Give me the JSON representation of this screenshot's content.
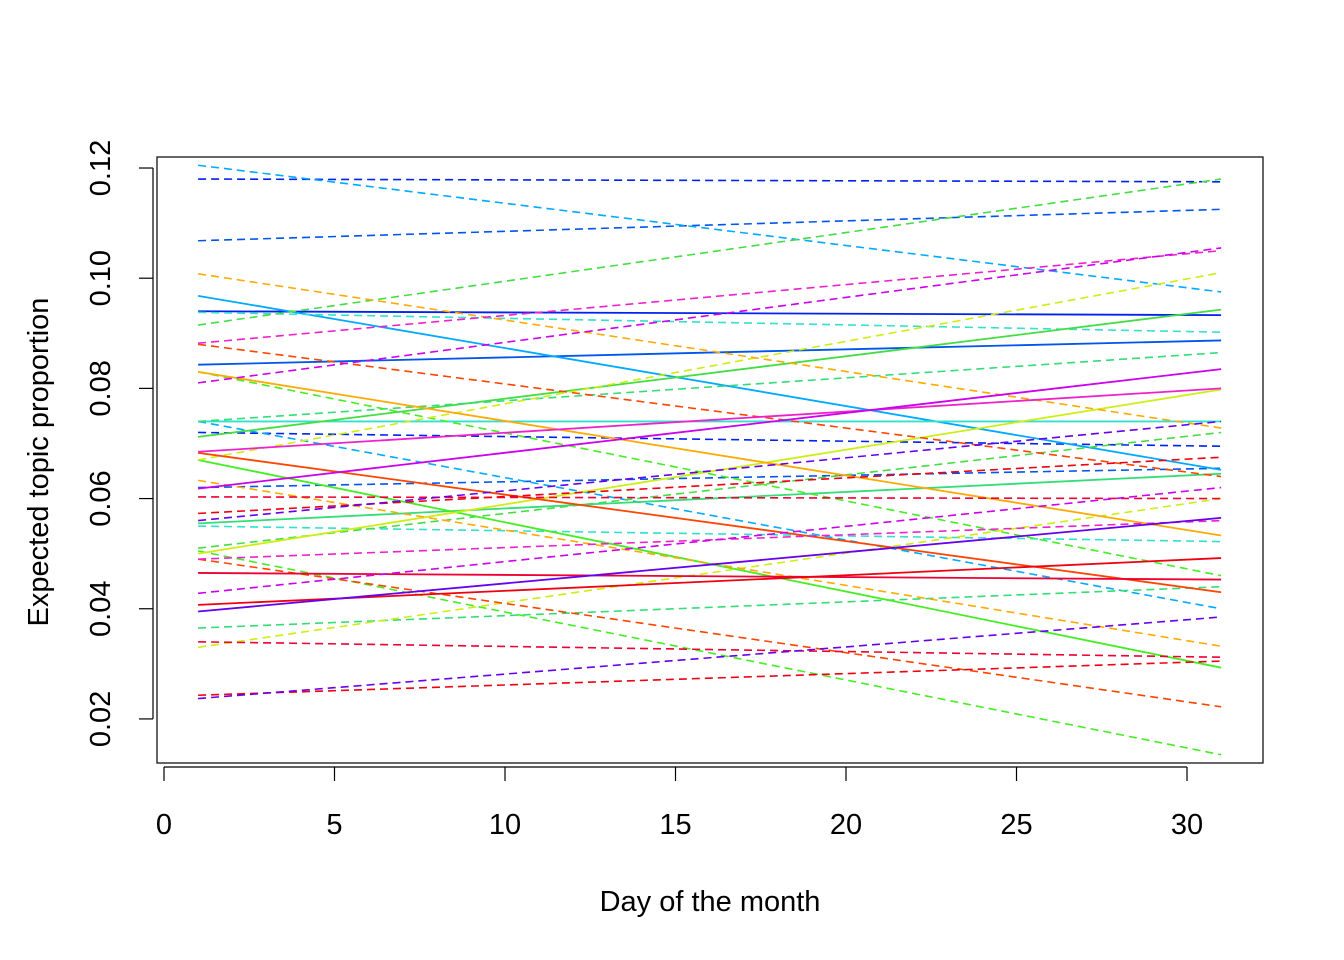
{
  "chart_data": {
    "type": "line",
    "title": "",
    "xlabel": "Day of the month",
    "ylabel": "Expected topic proportion",
    "xlim": [
      0,
      31
    ],
    "ylim": [
      0.012,
      0.122
    ],
    "x_ticks": [
      0,
      5,
      10,
      15,
      20,
      25,
      30
    ],
    "y_ticks": [
      0.02,
      0.04,
      0.06,
      0.08,
      0.1,
      0.12
    ],
    "x_tick_labels": [
      "0",
      "5",
      "10",
      "15",
      "20",
      "25",
      "30"
    ],
    "y_tick_labels": [
      "0.02",
      "0.04",
      "0.06",
      "0.08",
      "0.10",
      "0.12"
    ],
    "grid": false,
    "legend": "none",
    "x": [
      1,
      31
    ],
    "series": [
      {
        "color": "#0022EE",
        "values": [
          0.094,
          0.0933
        ],
        "lower": [
          0.072,
          0.0695
        ],
        "upper": [
          0.118,
          0.1175
        ]
      },
      {
        "color": "#0055EE",
        "values": [
          0.0843,
          0.0887
        ],
        "lower": [
          0.062,
          0.0655
        ],
        "upper": [
          0.1068,
          0.1125
        ]
      },
      {
        "color": "#00AAFF",
        "values": [
          0.0968,
          0.0652
        ],
        "lower": [
          0.074,
          0.04
        ],
        "upper": [
          0.1205,
          0.0975
        ]
      },
      {
        "color": "#33E0CC",
        "values": [
          0.074,
          0.074
        ],
        "lower": [
          0.055,
          0.0522
        ],
        "upper": [
          0.0938,
          0.0902
        ]
      },
      {
        "color": "#44DD44",
        "values": [
          0.0712,
          0.0943
        ],
        "lower": [
          0.051,
          0.072
        ],
        "upper": [
          0.0915,
          0.118
        ]
      },
      {
        "color": "#33DD77",
        "values": [
          0.0555,
          0.0645
        ],
        "lower": [
          0.0365,
          0.044
        ],
        "upper": [
          0.074,
          0.0865
        ]
      },
      {
        "color": "#44EE22",
        "values": [
          0.067,
          0.0293
        ],
        "lower": [
          0.0505,
          0.0135
        ],
        "upper": [
          0.083,
          0.046
        ]
      },
      {
        "color": "#CCEE11",
        "values": [
          0.05,
          0.0798
        ],
        "lower": [
          0.033,
          0.06
        ],
        "upper": [
          0.067,
          0.101
        ]
      },
      {
        "color": "#FFAA00",
        "values": [
          0.083,
          0.0533
        ],
        "lower": [
          0.0633,
          0.0332
        ],
        "upper": [
          0.1008,
          0.0728
        ]
      },
      {
        "color": "#FF4400",
        "values": [
          0.0683,
          0.043
        ],
        "lower": [
          0.049,
          0.0222
        ],
        "upper": [
          0.088,
          0.064
        ]
      },
      {
        "color": "#EE0033",
        "values": [
          0.0465,
          0.0453
        ],
        "lower": [
          0.034,
          0.0312
        ],
        "upper": [
          0.0603,
          0.06
        ]
      },
      {
        "color": "#EE0011",
        "values": [
          0.0407,
          0.0492
        ],
        "lower": [
          0.0243,
          0.0305
        ],
        "upper": [
          0.0573,
          0.0675
        ]
      },
      {
        "color": "#EE22CC",
        "values": [
          0.0685,
          0.08
        ],
        "lower": [
          0.049,
          0.056
        ],
        "upper": [
          0.0882,
          0.105
        ]
      },
      {
        "color": "#CC00EE",
        "values": [
          0.0618,
          0.0835
        ],
        "lower": [
          0.0428,
          0.062
        ],
        "upper": [
          0.081,
          0.1055
        ]
      },
      {
        "color": "#6600EE",
        "values": [
          0.0395,
          0.0565
        ],
        "lower": [
          0.0237,
          0.0385
        ],
        "upper": [
          0.056,
          0.074
        ]
      }
    ]
  }
}
